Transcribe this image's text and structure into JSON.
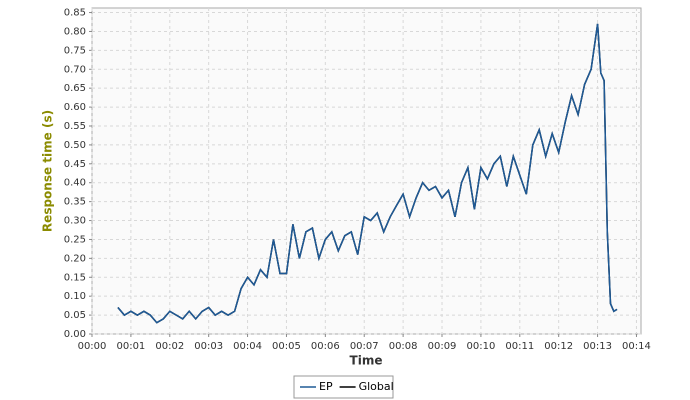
{
  "chart_data": {
    "type": "line",
    "xlabel": "Time",
    "ylabel": "Response time (s)",
    "x": [
      40,
      50,
      60,
      70,
      80,
      90,
      100,
      110,
      120,
      130,
      140,
      150,
      160,
      170,
      180,
      190,
      200,
      210,
      220,
      230,
      240,
      250,
      260,
      270,
      280,
      290,
      300,
      310,
      320,
      330,
      340,
      350,
      360,
      370,
      380,
      390,
      400,
      410,
      420,
      430,
      440,
      450,
      460,
      470,
      480,
      490,
      500,
      510,
      520,
      530,
      540,
      550,
      560,
      570,
      580,
      590,
      600,
      610,
      620,
      630,
      640,
      650,
      660,
      670,
      680,
      690,
      700,
      710,
      720,
      730,
      740,
      750,
      760,
      770,
      780,
      785,
      790,
      795,
      800,
      805,
      810
    ],
    "series": [
      {
        "name": "EP",
        "color": "#1f5a96",
        "values": [
          0.07,
          0.05,
          0.06,
          0.05,
          0.06,
          0.05,
          0.03,
          0.04,
          0.06,
          0.05,
          0.04,
          0.06,
          0.04,
          0.06,
          0.07,
          0.05,
          0.06,
          0.05,
          0.06,
          0.12,
          0.15,
          0.13,
          0.17,
          0.15,
          0.25,
          0.16,
          0.16,
          0.29,
          0.2,
          0.27,
          0.28,
          0.2,
          0.25,
          0.27,
          0.22,
          0.26,
          0.27,
          0.21,
          0.31,
          0.3,
          0.32,
          0.27,
          0.31,
          0.34,
          0.37,
          0.31,
          0.36,
          0.4,
          0.38,
          0.39,
          0.36,
          0.38,
          0.31,
          0.4,
          0.44,
          0.33,
          0.44,
          0.41,
          0.45,
          0.47,
          0.39,
          0.47,
          0.42,
          0.37,
          0.5,
          0.54,
          0.47,
          0.53,
          0.48,
          0.56,
          0.63,
          0.58,
          0.66,
          0.7,
          0.82,
          0.69,
          0.67,
          0.27,
          0.08,
          0.06,
          0.065
        ]
      },
      {
        "name": "Global",
        "color": "#000000",
        "values": [
          0.07,
          0.05,
          0.06,
          0.05,
          0.06,
          0.05,
          0.03,
          0.04,
          0.06,
          0.05,
          0.04,
          0.06,
          0.04,
          0.06,
          0.07,
          0.05,
          0.06,
          0.05,
          0.06,
          0.12,
          0.15,
          0.13,
          0.17,
          0.15,
          0.25,
          0.16,
          0.16,
          0.29,
          0.2,
          0.27,
          0.28,
          0.2,
          0.25,
          0.27,
          0.22,
          0.26,
          0.27,
          0.21,
          0.31,
          0.3,
          0.32,
          0.27,
          0.31,
          0.34,
          0.37,
          0.31,
          0.36,
          0.4,
          0.38,
          0.39,
          0.36,
          0.38,
          0.31,
          0.4,
          0.44,
          0.33,
          0.44,
          0.41,
          0.45,
          0.47,
          0.39,
          0.47,
          0.42,
          0.37,
          0.5,
          0.54,
          0.47,
          0.53,
          0.48,
          0.56,
          0.63,
          0.58,
          0.66,
          0.7,
          0.82,
          0.69,
          0.67,
          0.27,
          0.08,
          0.06,
          0.065
        ]
      }
    ],
    "xlim": [
      0,
      847
    ],
    "ylim": [
      0,
      0.862
    ],
    "xticks": [
      {
        "value": 0,
        "label": "00:00"
      },
      {
        "value": 60,
        "label": "00:01"
      },
      {
        "value": 120,
        "label": "00:02"
      },
      {
        "value": 180,
        "label": "00:03"
      },
      {
        "value": 240,
        "label": "00:04"
      },
      {
        "value": 300,
        "label": "00:05"
      },
      {
        "value": 360,
        "label": "00:06"
      },
      {
        "value": 420,
        "label": "00:07"
      },
      {
        "value": 480,
        "label": "00:08"
      },
      {
        "value": 540,
        "label": "00:09"
      },
      {
        "value": 600,
        "label": "00:10"
      },
      {
        "value": 660,
        "label": "00:11"
      },
      {
        "value": 720,
        "label": "00:12"
      },
      {
        "value": 780,
        "label": "00:13"
      },
      {
        "value": 840,
        "label": "00:14"
      }
    ],
    "yticks": [
      {
        "value": 0,
        "label": "0.00"
      },
      {
        "value": 0.05,
        "label": "0.05"
      },
      {
        "value": 0.1,
        "label": "0.10"
      },
      {
        "value": 0.15,
        "label": "0.15"
      },
      {
        "value": 0.2,
        "label": "0.20"
      },
      {
        "value": 0.25,
        "label": "0.25"
      },
      {
        "value": 0.3,
        "label": "0.30"
      },
      {
        "value": 0.35,
        "label": "0.35"
      },
      {
        "value": 0.4,
        "label": "0.40"
      },
      {
        "value": 0.45,
        "label": "0.45"
      },
      {
        "value": 0.5,
        "label": "0.50"
      },
      {
        "value": 0.55,
        "label": "0.55"
      },
      {
        "value": 0.6,
        "label": "0.60"
      },
      {
        "value": 0.65,
        "label": "0.65"
      },
      {
        "value": 0.7,
        "label": "0.70"
      },
      {
        "value": 0.75,
        "label": "0.75"
      },
      {
        "value": 0.8,
        "label": "0.80"
      },
      {
        "value": 0.85,
        "label": "0.85"
      }
    ],
    "grid": true
  }
}
